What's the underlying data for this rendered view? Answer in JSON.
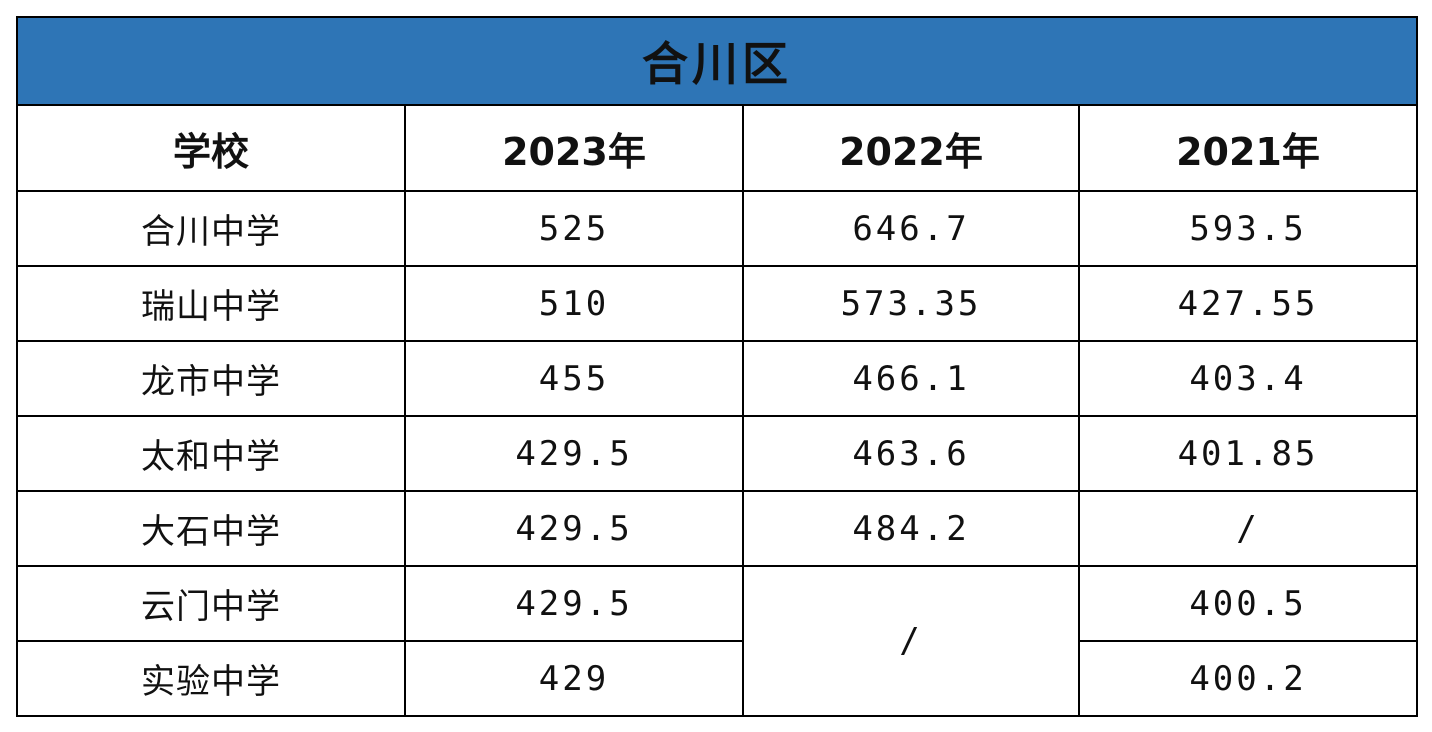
{
  "table": {
    "title": "合川区",
    "headers": [
      "学校",
      "2023年",
      "2022年",
      "2021年"
    ],
    "rows": [
      {
        "school": "合川中学",
        "y2023": "525",
        "y2022": "646.7",
        "y2021": "593.5"
      },
      {
        "school": "瑞山中学",
        "y2023": "510",
        "y2022": "573.35",
        "y2021": "427.55"
      },
      {
        "school": "龙市中学",
        "y2023": "455",
        "y2022": "466.1",
        "y2021": "403.4"
      },
      {
        "school": "太和中学",
        "y2023": "429.5",
        "y2022": "463.6",
        "y2021": "401.85"
      },
      {
        "school": "大石中学",
        "y2023": "429.5",
        "y2022": "484.2",
        "y2021": "/"
      },
      {
        "school": "云门中学",
        "y2023": "429.5",
        "y2022": "/",
        "y2021": "400.5"
      },
      {
        "school": "实验中学",
        "y2023": "429",
        "y2022": "/",
        "y2021": "400.2"
      }
    ]
  },
  "colors": {
    "title_background": "#2e75b6",
    "title_text": "#ffffff",
    "border": "#000000"
  }
}
